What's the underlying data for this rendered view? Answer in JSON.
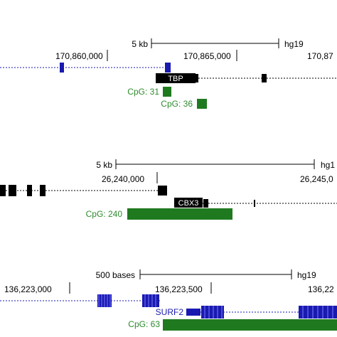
{
  "panels": [
    {
      "scale_label": "5 kb",
      "assembly": "hg19",
      "coord_labels": [
        "170,860,000",
        "170,865,000",
        "170,87"
      ],
      "gene_label": "TBP",
      "cpg_labels": [
        "CpG: 31",
        "CpG: 36"
      ]
    },
    {
      "scale_label": "5 kb",
      "assembly": "hg1",
      "coord_labels": [
        "26,240,000",
        "26,245,0"
      ],
      "gene_label": "CBX3",
      "cpg_labels": [
        "CpG: 240"
      ]
    },
    {
      "scale_label": "500 bases",
      "assembly": "hg19",
      "coord_labels": [
        "136,223,000",
        "136,223,500",
        "136,22"
      ],
      "gene_label": "SURF2",
      "cpg_labels": [
        "CpG: 63"
      ]
    }
  ],
  "colors": {
    "gene_dark": "#000000",
    "gene_blue": "#1a1ab0",
    "cpg_green": "#1f7a1f",
    "cpg_text": "#2e8b2e",
    "label_bg": "#000000",
    "label_text": "#ffffff"
  }
}
